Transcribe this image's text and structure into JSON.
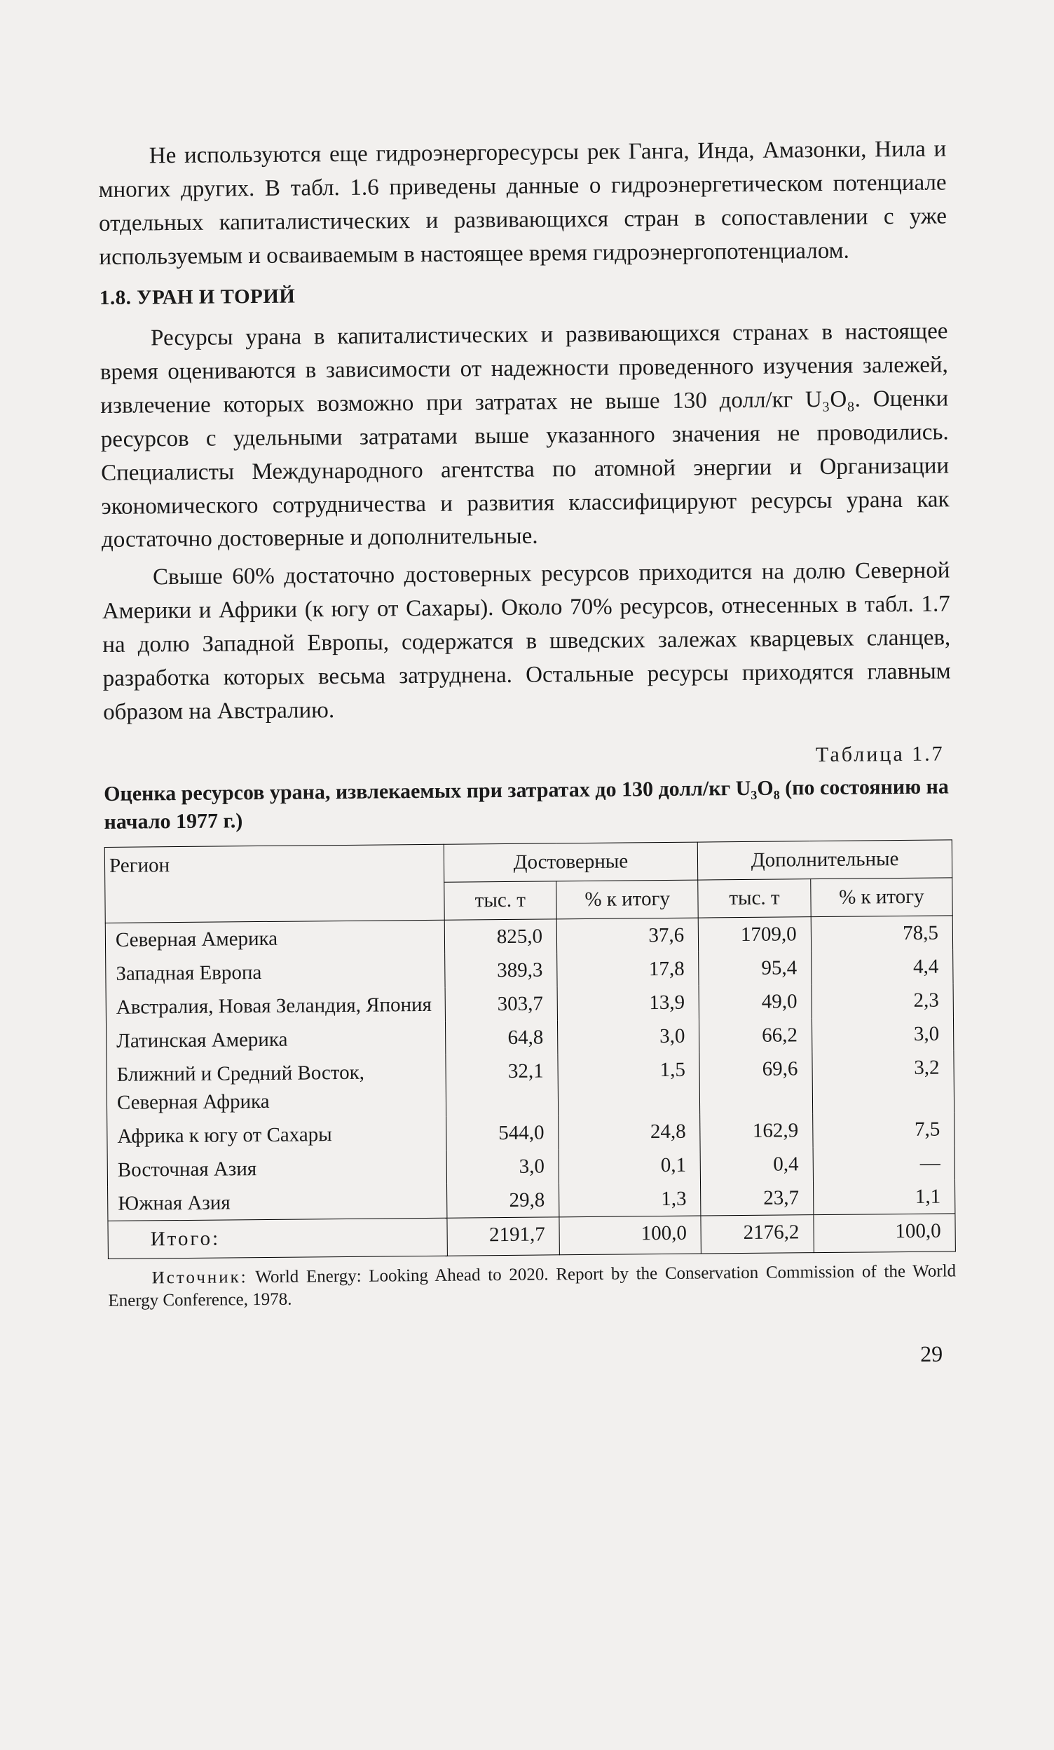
{
  "para1": "Не используются еще гидроэнергоресурсы рек Ганга, Инда, Амазонки, Нила и многих других. В табл. 1.6 приведены данные о гидроэнергетическом потенциале отдельных капиталистических и развивающихся стран в сопоставлении с уже используемым и осваиваемым в настоящее время гидроэнергопотенциалом.",
  "heading": "1.8. УРАН И ТОРИЙ",
  "para2": "Ресурсы урана в капиталистических и развивающихся странах в настоящее время оцениваются в зависимости от надежности проведенного изучения залежей, извлечение которых возможно при затратах не выше 130 долл/кг U₃O₈. Оценки ресурсов с удельными затратами выше указанного значения не проводились. Специалисты Международного агентства по атомной энергии и Организации экономического сотрудничества и развития классифицируют ресурсы урана как достаточно достоверные и дополнительные.",
  "para3": "Свыше 60% достаточно достоверных ресурсов приходится на долю Северной Америки и Африки (к югу от Сахары). Около 70% ресурсов, отнесенных в табл. 1.7 на долю Западной Европы, содержатся в шведских залежах кварцевых сланцев, разработка которых весьма затруднена. Остальные ресурсы приходятся главным образом на Австралию.",
  "table_label": "Таблица 1.7",
  "table_caption": "Оценка ресурсов урана, извлекаемых при затратах до 130 долл/кг U₃O₈ (по состоянию на начало 1977 г.)",
  "table": {
    "columns": {
      "region": "Регион",
      "group1": "Достоверные",
      "group2": "Дополнительные",
      "sub_a": "тыс. т",
      "sub_b": "% к итогу"
    },
    "rows": [
      {
        "region": "Северная Америка",
        "a1": "825,0",
        "a2": "37,6",
        "b1": "1709,0",
        "b2": "78,5"
      },
      {
        "region": "Западная Европа",
        "a1": "389,3",
        "a2": "17,8",
        "b1": "95,4",
        "b2": "4,4"
      },
      {
        "region": "Австралия, Новая Зеландия, Япония",
        "a1": "303,7",
        "a2": "13,9",
        "b1": "49,0",
        "b2": "2,3"
      },
      {
        "region": "Латинская Америка",
        "a1": "64,8",
        "a2": "3,0",
        "b1": "66,2",
        "b2": "3,0"
      },
      {
        "region": "Ближний и Средний Восток, Северная Африка",
        "a1": "32,1",
        "a2": "1,5",
        "b1": "69,6",
        "b2": "3,2"
      },
      {
        "region": "Африка к югу от Сахары",
        "a1": "544,0",
        "a2": "24,8",
        "b1": "162,9",
        "b2": "7,5"
      },
      {
        "region": "Восточная Азия",
        "a1": "3,0",
        "a2": "0,1",
        "b1": "0,4",
        "b2": "—"
      },
      {
        "region": "Южная Азия",
        "a1": "29,8",
        "a2": "1,3",
        "b1": "23,7",
        "b2": "1,1"
      }
    ],
    "total": {
      "label": "Итого:",
      "a1": "2191,7",
      "a2": "100,0",
      "b1": "2176,2",
      "b2": "100,0"
    }
  },
  "source_label": "Источник:",
  "source_text": " World Energy: Looking Ahead to 2020. Report by the Conservation Commission of the World Energy Conference, 1978.",
  "page_number": "29"
}
